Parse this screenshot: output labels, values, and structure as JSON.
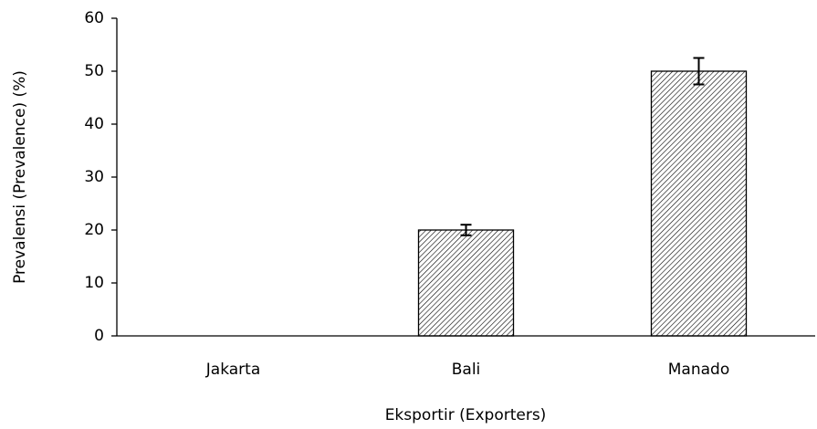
{
  "chart_data": {
    "type": "bar",
    "categories": [
      "Jakarta",
      "Bali",
      "Manado"
    ],
    "values": [
      0,
      20,
      50
    ],
    "errors": [
      null,
      1,
      2.5
    ],
    "color": "#000000",
    "hatch": true,
    "ylabel": "Prevalensi (Prevalence) (%)",
    "xlabel": "Eksportir (Exporters)",
    "ylim": [
      0,
      60
    ],
    "yticks": [
      0,
      10,
      20,
      30,
      40,
      50,
      60
    ],
    "grid": false
  }
}
